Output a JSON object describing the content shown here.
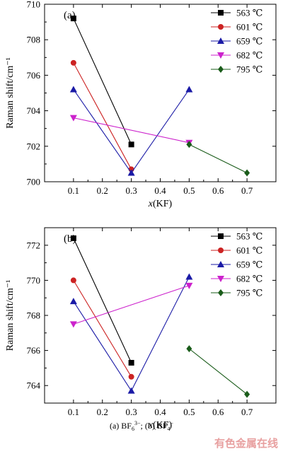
{
  "chart_data": [
    {
      "type": "line",
      "panel_label": "(a)",
      "xlabel": "x(KF)",
      "ylabel": "Raman shift/cm⁻¹",
      "xlim": [
        0.0,
        0.8
      ],
      "ylim": [
        700,
        710
      ],
      "xticks": [
        0.1,
        0.2,
        0.3,
        0.4,
        0.5,
        0.6,
        0.7
      ],
      "yticks": [
        700,
        702,
        704,
        706,
        708,
        710
      ],
      "grid": false,
      "legend_position": "top-right",
      "series": [
        {
          "name": "563 ℃",
          "color": "#000000",
          "marker": "square",
          "points": [
            [
              0.1,
              709.2
            ],
            [
              0.3,
              702.1
            ]
          ]
        },
        {
          "name": "601 ℃",
          "color": "#cc2222",
          "marker": "circle",
          "points": [
            [
              0.1,
              706.7
            ],
            [
              0.3,
              700.7
            ]
          ]
        },
        {
          "name": "659 ℃",
          "color": "#1a1aa6",
          "marker": "triangle-up",
          "points": [
            [
              0.1,
              705.2
            ],
            [
              0.3,
              700.5
            ],
            [
              0.5,
              705.2
            ]
          ]
        },
        {
          "name": "682 ℃",
          "color": "#cc22cc",
          "marker": "triangle-down",
          "points": [
            [
              0.1,
              703.6
            ],
            [
              0.5,
              702.2
            ]
          ]
        },
        {
          "name": "795 ℃",
          "color": "#1a5c1a",
          "marker": "diamond",
          "points": [
            [
              0.5,
              702.1
            ],
            [
              0.7,
              700.5
            ]
          ]
        }
      ]
    },
    {
      "type": "line",
      "panel_label": "(b)",
      "xlabel": "x(KF)",
      "ylabel": "Raman shift/cm⁻¹",
      "xlim": [
        0.0,
        0.8
      ],
      "ylim": [
        763,
        773
      ],
      "xticks": [
        0.1,
        0.2,
        0.3,
        0.4,
        0.5,
        0.6,
        0.7
      ],
      "yticks": [
        764,
        766,
        768,
        770,
        772
      ],
      "grid": false,
      "legend_position": "top-right",
      "series": [
        {
          "name": "563 ℃",
          "color": "#000000",
          "marker": "square",
          "points": [
            [
              0.1,
              772.4
            ],
            [
              0.3,
              765.3
            ]
          ]
        },
        {
          "name": "601 ℃",
          "color": "#cc2222",
          "marker": "circle",
          "points": [
            [
              0.1,
              770.0
            ],
            [
              0.3,
              764.5
            ]
          ]
        },
        {
          "name": "659 ℃",
          "color": "#1a1aa6",
          "marker": "triangle-up",
          "points": [
            [
              0.1,
              768.8
            ],
            [
              0.3,
              763.7
            ],
            [
              0.5,
              770.2
            ]
          ]
        },
        {
          "name": "682 ℃",
          "color": "#cc22cc",
          "marker": "triangle-down",
          "points": [
            [
              0.1,
              767.5
            ],
            [
              0.5,
              769.7
            ]
          ]
        },
        {
          "name": "795 ℃",
          "color": "#1a5c1a",
          "marker": "diamond",
          "points": [
            [
              0.5,
              766.1
            ],
            [
              0.7,
              763.5
            ]
          ]
        }
      ]
    }
  ],
  "caption": {
    "a_prefix": "(a) BF",
    "a_sub": "6",
    "a_sup": "3−",
    "separator": "; (b) BF",
    "b_sub": "4",
    "b_sup": "−"
  },
  "watermark": "有色金属在线"
}
